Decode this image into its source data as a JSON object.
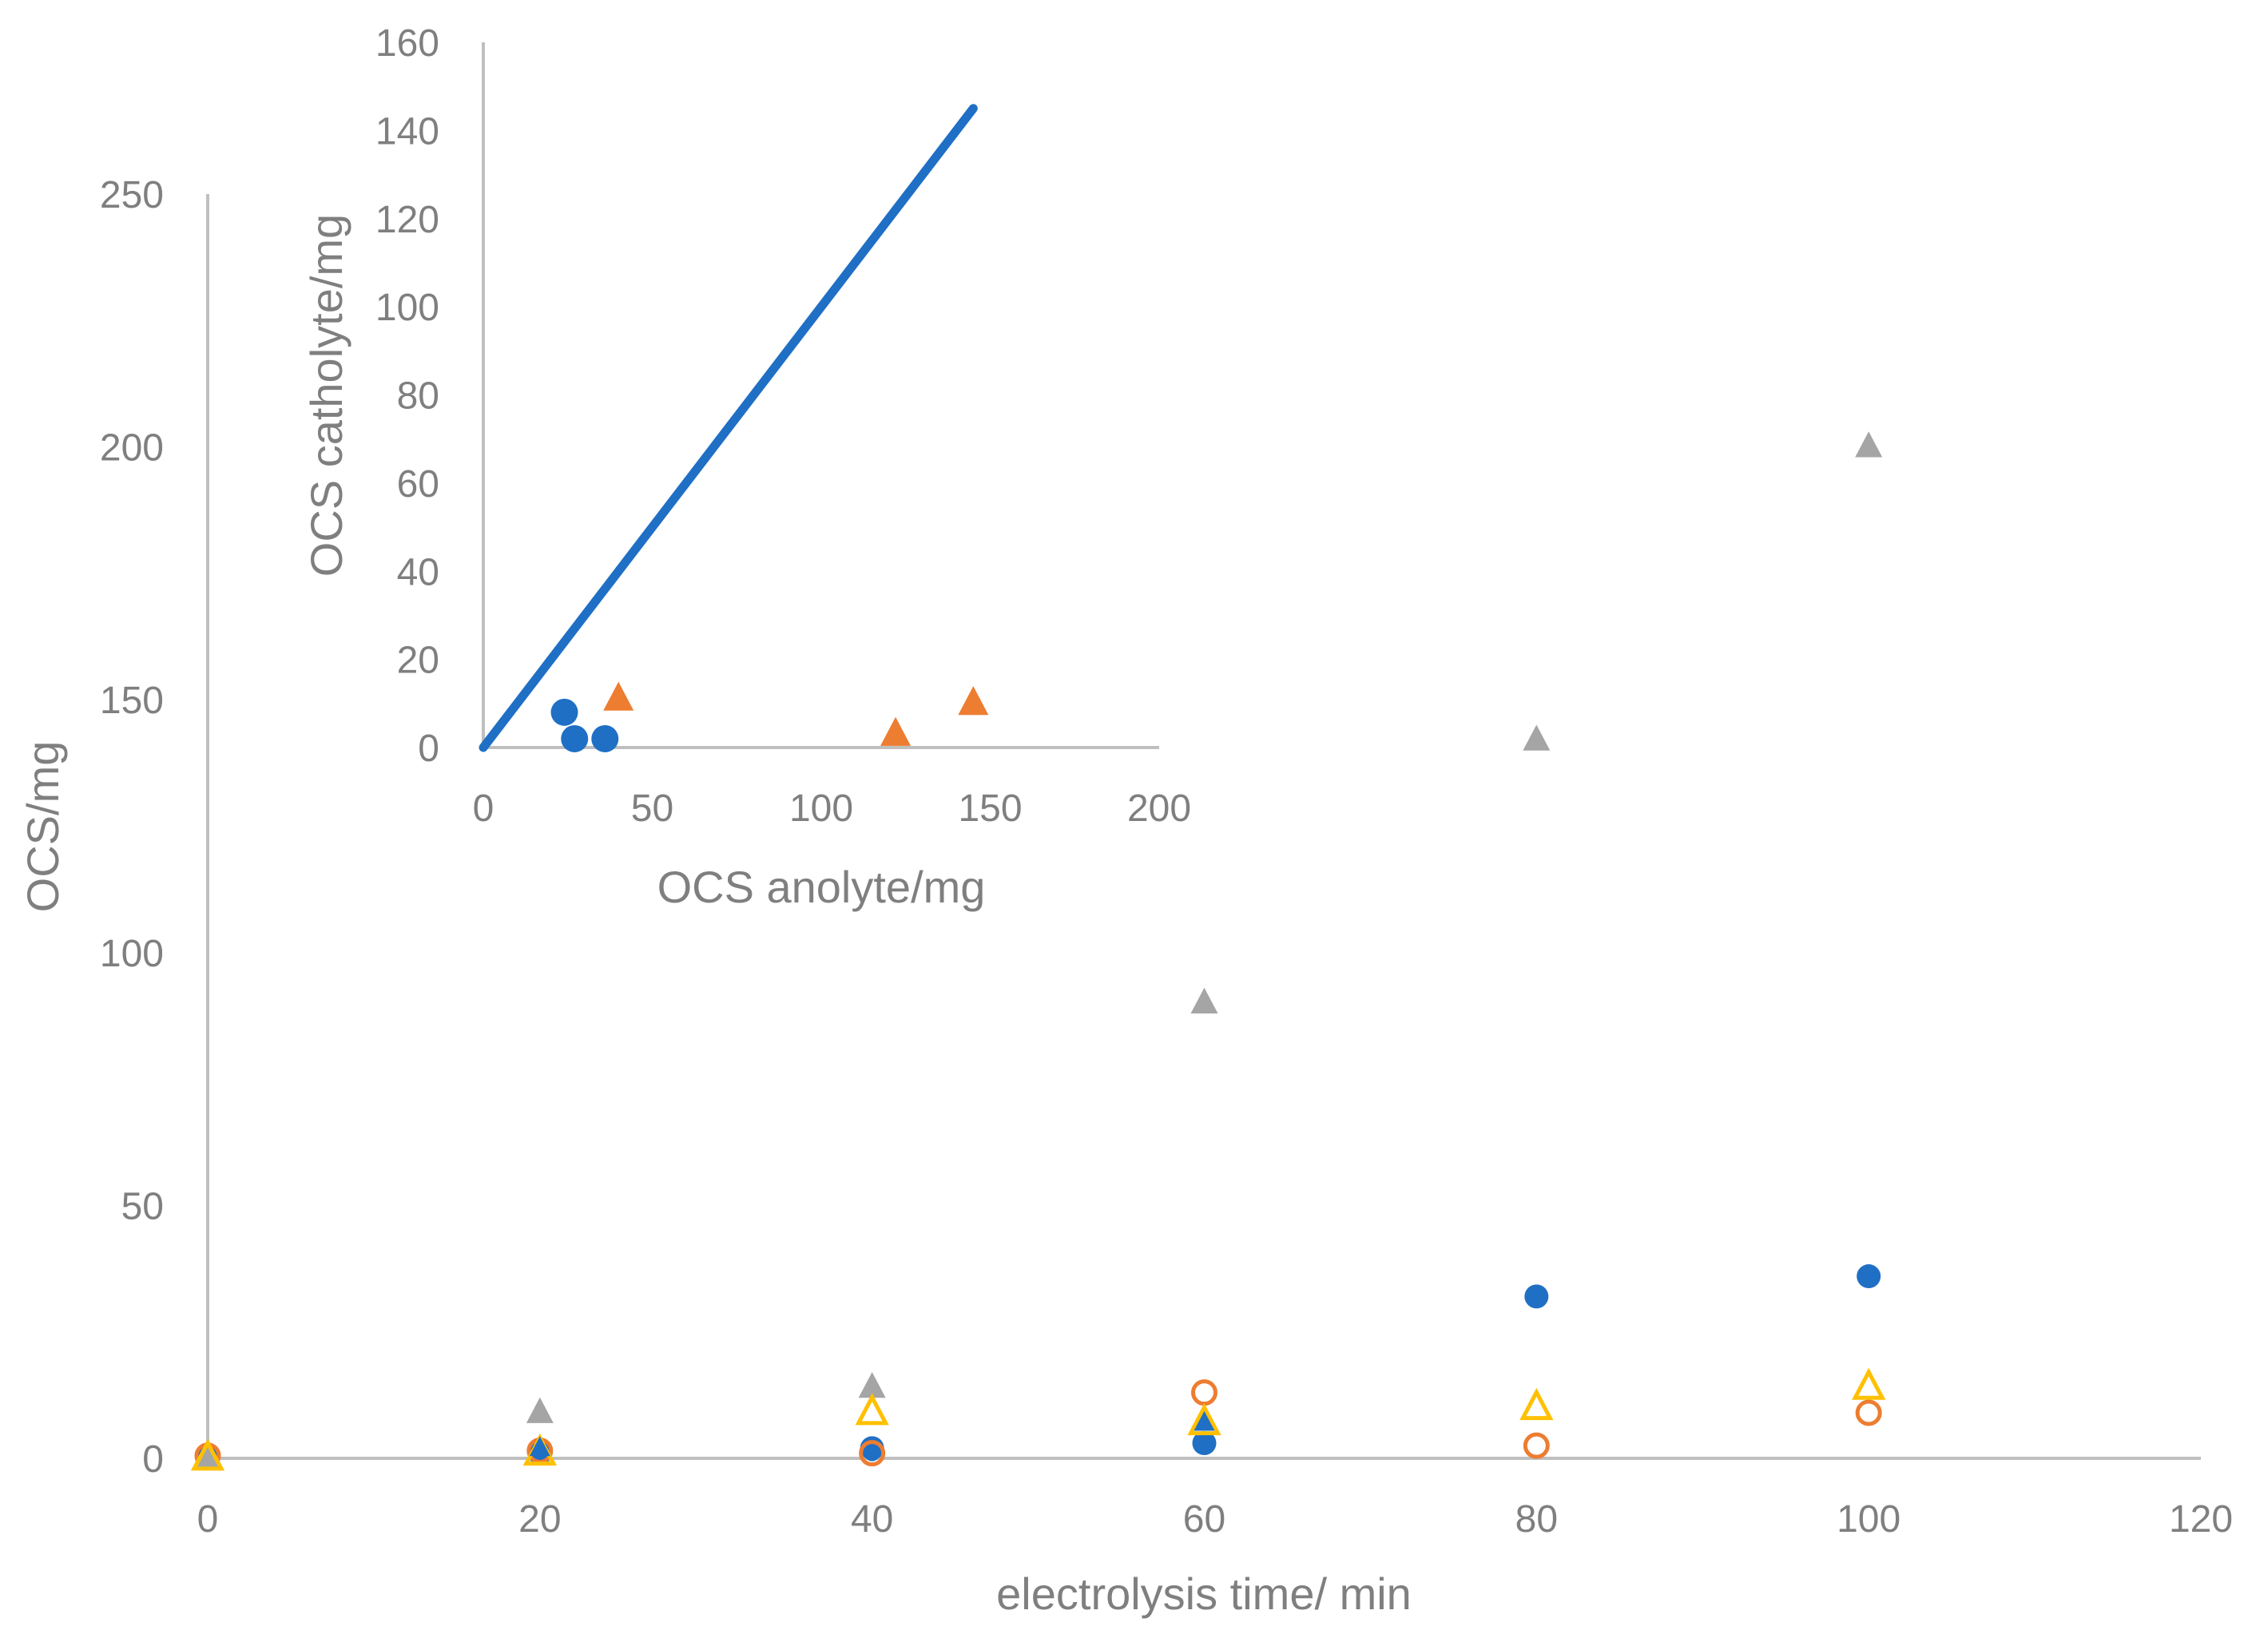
{
  "chart_data": [
    {
      "type": "scatter",
      "title": "",
      "xlabel": "electrolysis time/ min",
      "ylabel": "OCS/mg",
      "xlim": [
        0,
        120
      ],
      "ylim": [
        0,
        250
      ],
      "x_ticks": [
        0,
        20,
        40,
        60,
        80,
        100,
        120
      ],
      "y_ticks": [
        0,
        50,
        100,
        150,
        200,
        250
      ],
      "grid": false,
      "legend": "none",
      "series": [
        {
          "marker": "filled-circle",
          "color": "#1f6fc5",
          "points": [
            [
              0,
              0
            ],
            [
              20,
              1
            ],
            [
              40,
              2
            ],
            [
              60,
              3
            ],
            [
              80,
              32
            ],
            [
              100,
              36
            ]
          ]
        },
        {
          "marker": "open-circle",
          "color": "#ed7d31",
          "points": [
            [
              0,
              0.5
            ],
            [
              20,
              1.5
            ],
            [
              40,
              1
            ],
            [
              60,
              13
            ],
            [
              80,
              2.5
            ],
            [
              100,
              9
            ]
          ]
        },
        {
          "marker": "filled-triangle",
          "color": "#a5a5a5",
          "points": [
            [
              0,
              0
            ],
            [
              20,
              9
            ],
            [
              40,
              14
            ],
            [
              60,
              90
            ],
            [
              80,
              142
            ],
            [
              100,
              200
            ]
          ]
        },
        {
          "marker": "open-triangle",
          "color": "#ffc000",
          "points": [
            [
              0,
              0
            ],
            [
              20,
              1
            ],
            [
              40,
              9
            ],
            [
              60,
              7
            ],
            [
              80,
              10
            ],
            [
              100,
              14
            ]
          ]
        },
        {
          "marker": "filled-circle-small",
          "color": "#1f6fc5",
          "points": [
            [
              40,
              1
            ]
          ]
        },
        {
          "marker": "filled-triangle-small",
          "color": "#1f6fc5",
          "points": [
            [
              20,
              2
            ],
            [
              60,
              7
            ]
          ]
        }
      ]
    },
    {
      "type": "scatter",
      "title": "",
      "xlabel": "OCS anolyte/mg",
      "ylabel": "OCS catholyte/mg",
      "xlim": [
        0,
        200
      ],
      "ylim": [
        0,
        160
      ],
      "x_ticks": [
        0,
        50,
        100,
        150,
        200
      ],
      "y_ticks": [
        0,
        20,
        40,
        60,
        80,
        100,
        120,
        140,
        160
      ],
      "grid": false,
      "legend": "none",
      "series": [
        {
          "marker": "line",
          "color": "#1f6fc5",
          "points": [
            [
              0,
              0
            ],
            [
              145,
              145
            ]
          ]
        },
        {
          "marker": "filled-circle",
          "color": "#1f6fc5",
          "points": [
            [
              24,
              8
            ],
            [
              27,
              2
            ],
            [
              36,
              2
            ]
          ]
        },
        {
          "marker": "filled-triangle",
          "color": "#ed7d31",
          "points": [
            [
              40,
              11
            ],
            [
              122,
              3
            ],
            [
              145,
              10
            ]
          ]
        }
      ]
    }
  ]
}
